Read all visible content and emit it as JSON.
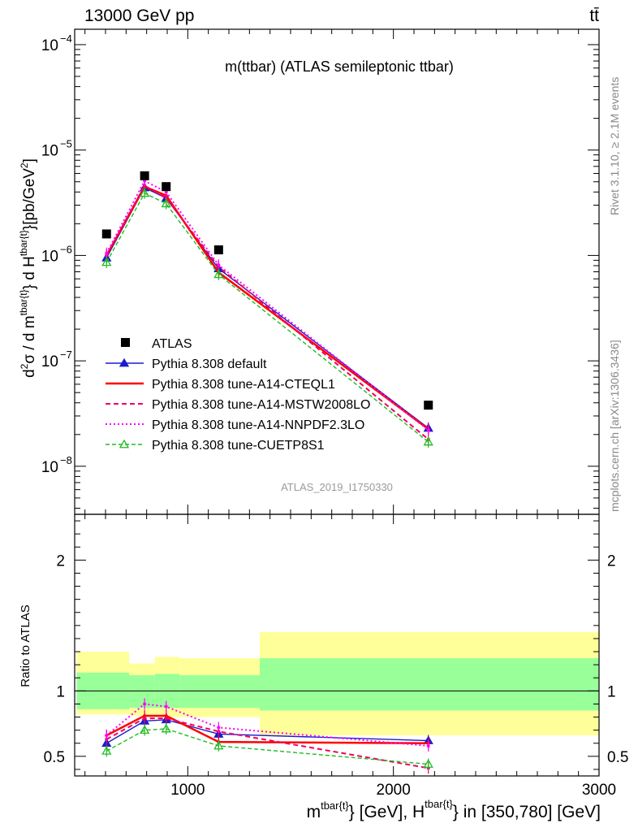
{
  "header": {
    "energy_label": "13000 GeV pp",
    "process_label": "tt̄"
  },
  "chart_data": [
    {
      "type": "line",
      "panel": "main",
      "title": "m(ttbar) (ATLAS semileptonic ttbar)",
      "ylabel": "d²σ / d m^{tbar{t}} d H_T^{tbar{t}} [pb/GeV²]",
      "xlim": [
        450,
        3000
      ],
      "ylim": [
        3.5e-09,
        0.00014
      ],
      "yscale": "log",
      "ytick_labels": [
        {
          "mant": "10",
          "exp": "−4",
          "value": 0.0001
        },
        {
          "mant": "10",
          "exp": "−5",
          "value": 1e-05
        },
        {
          "mant": "10",
          "exp": "−6",
          "value": 1e-06
        },
        {
          "mant": "10",
          "exp": "−7",
          "value": 1e-07
        },
        {
          "mant": "10",
          "exp": "−8",
          "value": 1e-08
        }
      ],
      "data_series": {
        "name": "ATLAS",
        "color": "#000000",
        "x": [
          605,
          790,
          895,
          1150,
          2170
        ],
        "y": [
          1.6e-06,
          5.7e-06,
          4.5e-06,
          1.13e-06,
          3.8e-08
        ]
      },
      "series": [
        {
          "name": "Pythia 8.308 default",
          "color": "#1c1ccc",
          "style": "solid-triangle",
          "x": [
            605,
            790,
            895,
            1150,
            2170
          ],
          "y": [
            9.5e-07,
            4.4e-06,
            3.5e-06,
            7.5e-07,
            2.3e-08
          ]
        },
        {
          "name": "Pythia 8.308 tune-A14-CTEQL1",
          "color": "#ff0000",
          "style": "solid-thick",
          "x": [
            605,
            790,
            895,
            1150,
            2170
          ],
          "y": [
            1e-06,
            4.5e-06,
            3.7e-06,
            6.9e-07,
            2.25e-08
          ]
        },
        {
          "name": "Pythia 8.308 tune-A14-MSTW2008LO",
          "color": "#ee0066",
          "style": "dashed",
          "x": [
            605,
            790,
            895,
            1150,
            2170
          ],
          "y": [
            1e-06,
            4.6e-06,
            3.5e-06,
            7.8e-07,
            1.8e-08
          ]
        },
        {
          "name": "Pythia 8.308 tune-A14-NNPDF2.3LO",
          "color": "#ff00ff",
          "style": "dotted",
          "x": [
            605,
            790,
            895,
            1150,
            2170
          ],
          "y": [
            1.05e-06,
            5.1e-06,
            4e-06,
            8.1e-07,
            2.2e-08
          ]
        },
        {
          "name": "Pythia 8.308 tune-CUETP8S1",
          "color": "#22bb22",
          "style": "dashed-open-triangle",
          "x": [
            605,
            790,
            895,
            1150,
            2170
          ],
          "y": [
            8.6e-07,
            3.9e-06,
            3.1e-06,
            6.6e-07,
            1.7e-08
          ]
        }
      ],
      "annotations": {
        "analysis_id": "ATLAS_2019_I1750330",
        "rivet_label": "Rivet 3.1.10, ≥ 2.1M events",
        "mcplots_label": "mcplots.cern.ch [arXiv:1306.3436]"
      }
    },
    {
      "type": "line",
      "panel": "ratio",
      "ylabel": "Ratio to ATLAS",
      "xlabel": "m^{tbar{t}} [GeV], H_T^{tbar{t}} in [350,780] [GeV]",
      "xlim": [
        450,
        3000
      ],
      "ylim": [
        0.35,
        2.35
      ],
      "x_tick_labels": [
        "1000",
        "2000",
        "3000"
      ],
      "y_tick_labels": [
        "0.5",
        "1",
        "2"
      ],
      "bins": [
        {
          "lo": 460,
          "hi": 715,
          "stat": [
            0.86,
            1.14
          ],
          "total": [
            0.82,
            1.3
          ]
        },
        {
          "lo": 715,
          "hi": 840,
          "stat": [
            0.87,
            1.12
          ],
          "total": [
            0.81,
            1.21
          ]
        },
        {
          "lo": 840,
          "hi": 960,
          "stat": [
            0.87,
            1.13
          ],
          "total": [
            0.8,
            1.26
          ]
        },
        {
          "lo": 960,
          "hi": 1350,
          "stat": [
            0.87,
            1.12
          ],
          "total": [
            0.8,
            1.25
          ]
        },
        {
          "lo": 1350,
          "hi": 3000,
          "stat": [
            0.85,
            1.25
          ],
          "total": [
            0.66,
            1.45
          ]
        }
      ],
      "series": [
        {
          "name": "Pythia 8.308 default",
          "color": "#1c1ccc",
          "style": "solid-triangle",
          "x": [
            605,
            790,
            895,
            1150,
            2170
          ],
          "y": [
            0.6,
            0.77,
            0.78,
            0.67,
            0.62
          ]
        },
        {
          "name": "Pythia 8.308 tune-A14-CTEQL1",
          "color": "#ff0000",
          "style": "solid-thick",
          "x": [
            605,
            790,
            895,
            1150,
            2170
          ],
          "y": [
            0.66,
            0.81,
            0.81,
            0.61,
            0.6
          ]
        },
        {
          "name": "Pythia 8.308 tune-A14-MSTW2008LO",
          "color": "#ee0066",
          "style": "dashed",
          "x": [
            605,
            790,
            895,
            1150,
            2170
          ],
          "y": [
            0.63,
            0.79,
            0.79,
            0.69,
            0.41
          ]
        },
        {
          "name": "Pythia 8.308 tune-A14-NNPDF2.3LO",
          "color": "#ff00ff",
          "style": "dotted",
          "x": [
            605,
            790,
            895,
            1150,
            2170
          ],
          "y": [
            0.66,
            0.9,
            0.88,
            0.72,
            0.58
          ]
        },
        {
          "name": "Pythia 8.308 tune-CUETP8S1",
          "color": "#22bb22",
          "style": "dashed-open-triangle",
          "x": [
            605,
            790,
            895,
            1150,
            2170
          ],
          "y": [
            0.54,
            0.7,
            0.71,
            0.58,
            0.44
          ]
        }
      ]
    }
  ],
  "legend": [
    {
      "label": "ATLAS"
    },
    {
      "label": "Pythia 8.308 default"
    },
    {
      "label": "Pythia 8.308 tune-A14-CTEQL1"
    },
    {
      "label": "Pythia 8.308 tune-A14-MSTW2008LO"
    },
    {
      "label": "Pythia 8.308 tune-A14-NNPDF2.3LO"
    },
    {
      "label": "Pythia 8.308 tune-CUETP8S1"
    }
  ]
}
